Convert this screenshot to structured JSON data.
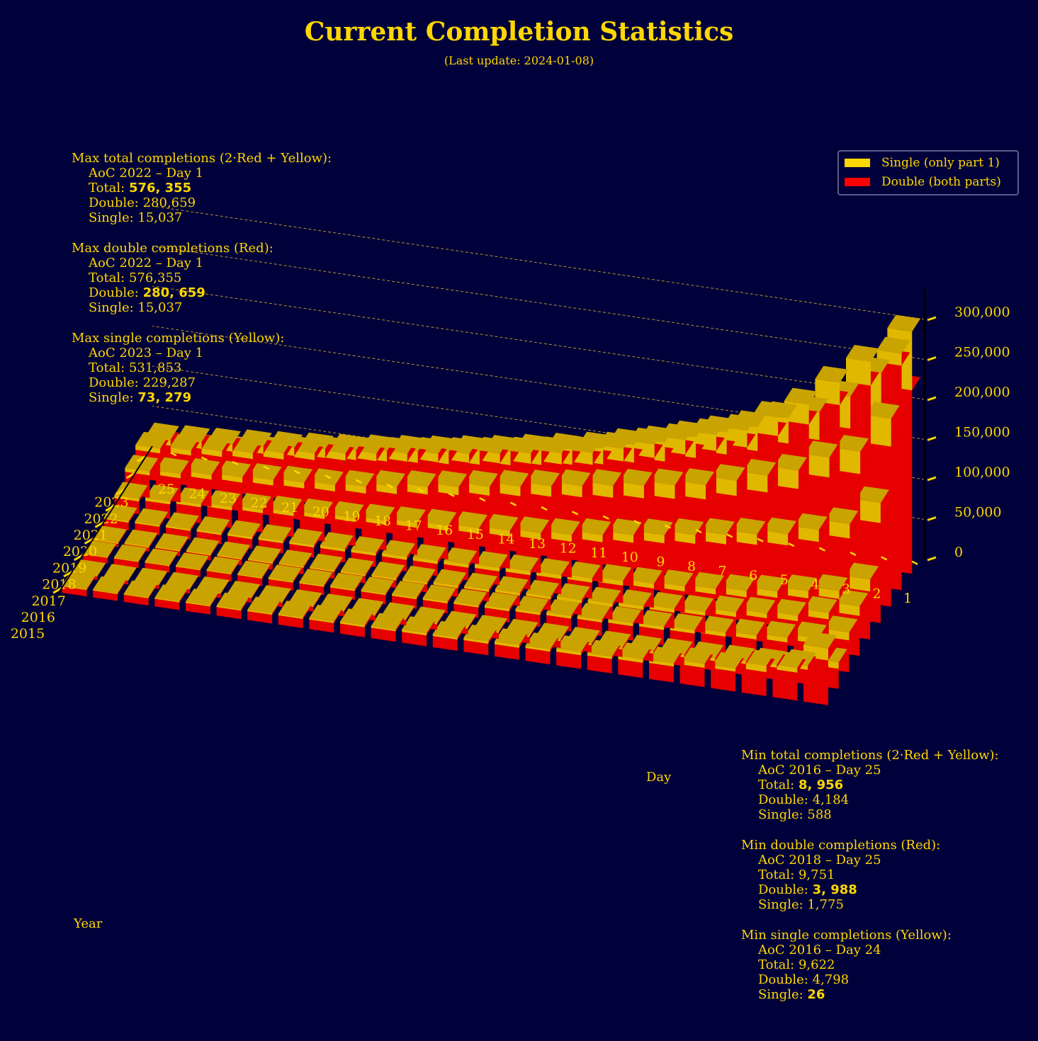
{
  "title": "Current Completion Statistics",
  "subtitle": "(Last update: 2024-01-08)",
  "legend": [
    {
      "label": "Single (only part 1)",
      "color": "#ffd700"
    },
    {
      "label": "Double (both parts)",
      "color": "#ff0000"
    }
  ],
  "stats_max": [
    {
      "heading": "Max total completions (2·Red + Yellow):",
      "event": "AoC 2022 – Day 1",
      "total_label": "Total: ",
      "total": "576, 355",
      "double_label": "Double: ",
      "double": "280,659",
      "single_label": "Single: ",
      "single": "15,037",
      "bold": "total"
    },
    {
      "heading": "Max double completions (Red):",
      "event": "AoC 2022 – Day 1",
      "total_label": "Total: ",
      "total": "576,355",
      "double_label": "Double: ",
      "double": "280, 659",
      "single_label": "Single: ",
      "single": "15,037",
      "bold": "double"
    },
    {
      "heading": "Max single completions (Yellow):",
      "event": "AoC 2023 – Day 1",
      "total_label": "Total: ",
      "total": "531,853",
      "double_label": "Double: ",
      "double": "229,287",
      "single_label": "Single: ",
      "single": "73, 279",
      "bold": "single"
    }
  ],
  "stats_min": [
    {
      "heading": "Min total completions (2·Red + Yellow):",
      "event": "AoC 2016 – Day 25",
      "total_label": "Total: ",
      "total": "8, 956",
      "double_label": "Double: ",
      "double": "4,184",
      "single_label": "Single: ",
      "single": "588",
      "bold": "total"
    },
    {
      "heading": "Min double completions (Red):",
      "event": "AoC 2018 – Day 25",
      "total_label": "Total: ",
      "total": "9,751",
      "double_label": "Double: ",
      "double": "3, 988",
      "single_label": "Single: ",
      "single": "1,775",
      "bold": "double"
    },
    {
      "heading": "Min single completions (Yellow):",
      "event": "AoC 2016 – Day 24",
      "total_label": "Total: ",
      "total": "9,622",
      "double_label": "Double: ",
      "double": "4,798",
      "single_label": "Single: ",
      "single": "26",
      "bold": "single"
    }
  ],
  "chart_data": {
    "type": "bar",
    "projection": "3d",
    "stacked": true,
    "xlabel": "Year",
    "ylabel": "Day",
    "zlabel": "",
    "years": [
      "2015",
      "2016",
      "2017",
      "2018",
      "2019",
      "2020",
      "2021",
      "2022",
      "2023"
    ],
    "days": [
      "1",
      "2",
      "3",
      "4",
      "5",
      "6",
      "7",
      "8",
      "9",
      "10",
      "11",
      "12",
      "13",
      "14",
      "15",
      "16",
      "17",
      "18",
      "19",
      "20",
      "21",
      "22",
      "23",
      "24",
      "25"
    ],
    "zticks": [
      "0",
      "50,000",
      "100,000",
      "150,000",
      "200,000",
      "250,000",
      "300,000"
    ],
    "zlim": [
      0,
      300000
    ],
    "grid": true,
    "legend_position": "top-right",
    "series": [
      {
        "name": "Double (both parts)",
        "color": "#ff0000",
        "values": [
          [
            56000,
            35000,
            30000,
            25000,
            24000,
            20000,
            19000,
            18000,
            17000,
            16000,
            15000,
            14500,
            14000,
            13500,
            13000,
            12500,
            12000,
            11500,
            11000,
            10500,
            10000,
            9500,
            9000,
            8500,
            8000
          ],
          [
            25000,
            18000,
            15000,
            14000,
            12000,
            11000,
            10000,
            9500,
            9000,
            8500,
            8000,
            7500,
            7000,
            6800,
            6600,
            6400,
            6200,
            6000,
            5800,
            5600,
            5400,
            5200,
            5000,
            4798,
            4184
          ],
          [
            40000,
            30000,
            26000,
            24000,
            22000,
            20000,
            19000,
            18000,
            17000,
            16000,
            15000,
            14000,
            13000,
            12500,
            12000,
            11500,
            11000,
            10500,
            10000,
            9500,
            9000,
            8500,
            8000,
            7500,
            7000
          ],
          [
            50000,
            40000,
            32000,
            30000,
            26000,
            22000,
            20000,
            18000,
            16000,
            15000,
            14000,
            13000,
            12000,
            11000,
            10000,
            9500,
            9000,
            8500,
            8000,
            7500,
            7000,
            6500,
            6000,
            5000,
            3988
          ],
          [
            60000,
            45000,
            40000,
            35000,
            30000,
            28000,
            26000,
            24000,
            22000,
            20000,
            19000,
            18000,
            17000,
            16000,
            15000,
            14500,
            14000,
            13500,
            13000,
            12500,
            12000,
            11500,
            11000,
            10500,
            10000
          ],
          [
            125000,
            100000,
            90000,
            80000,
            75000,
            70000,
            65000,
            60000,
            55000,
            50000,
            45000,
            42000,
            40000,
            38000,
            36000,
            34000,
            32000,
            30000,
            28000,
            26000,
            24000,
            22000,
            20000,
            18000,
            16000
          ],
          [
            200000,
            160000,
            150000,
            130000,
            120000,
            110000,
            100000,
            95000,
            90000,
            85000,
            80000,
            75000,
            70000,
            65000,
            60000,
            55000,
            50000,
            45000,
            42000,
            40000,
            38000,
            36000,
            34000,
            30000,
            28000
          ],
          [
            280659,
            250000,
            220000,
            190000,
            170000,
            150000,
            140000,
            130000,
            120000,
            110000,
            100000,
            95000,
            90000,
            85000,
            80000,
            75000,
            70000,
            65000,
            60000,
            55000,
            50000,
            45000,
            42000,
            38000,
            35000
          ],
          [
            229287,
            200000,
            170000,
            150000,
            140000,
            125000,
            115000,
            105000,
            95000,
            88000,
            80000,
            74000,
            68000,
            62000,
            57000,
            52000,
            48000,
            44000,
            40000,
            37000,
            34000,
            31000,
            28000,
            26000,
            24000
          ]
        ]
      },
      {
        "name": "Single (only part 1)",
        "color": "#ffd700",
        "values": [
          [
            15000,
            6000,
            8000,
            4000,
            5000,
            4000,
            4500,
            3000,
            4000,
            3000,
            3500,
            3000,
            2500,
            3000,
            2000,
            2500,
            2000,
            2000,
            1800,
            1800,
            1600,
            1500,
            1400,
            1300,
            1200
          ],
          [
            8000,
            5000,
            4000,
            3000,
            3500,
            3000,
            2500,
            2500,
            2000,
            2000,
            1800,
            1600,
            1500,
            1400,
            1300,
            1200,
            1100,
            1000,
            900,
            850,
            800,
            750,
            700,
            26,
            588
          ],
          [
            10000,
            7000,
            6000,
            5000,
            5000,
            4500,
            4000,
            4000,
            3500,
            3500,
            3000,
            3000,
            2500,
            2500,
            2200,
            2000,
            2000,
            1800,
            1800,
            1600,
            1500,
            1400,
            1300,
            1200,
            1100
          ],
          [
            12000,
            8000,
            7000,
            6000,
            6000,
            5000,
            5000,
            4500,
            4000,
            4000,
            3500,
            3500,
            3000,
            3000,
            2500,
            2500,
            2200,
            2000,
            1900,
            1800,
            1800,
            1775,
            1775,
            1775,
            1775
          ],
          [
            15000,
            10000,
            9000,
            8000,
            8000,
            7000,
            6500,
            6000,
            6000,
            5500,
            5000,
            5000,
            4500,
            4500,
            4000,
            4000,
            3500,
            3500,
            3000,
            3000,
            2800,
            2600,
            2400,
            2200,
            2000
          ],
          [
            25000,
            18000,
            15000,
            14000,
            13000,
            12000,
            11000,
            10000,
            9500,
            9000,
            8500,
            8000,
            7500,
            7000,
            6500,
            6000,
            5500,
            5000,
            4800,
            4600,
            4400,
            4200,
            4000,
            3800,
            3600
          ],
          [
            35000,
            28000,
            25000,
            23000,
            21000,
            19000,
            18000,
            17000,
            16000,
            15000,
            14000,
            13000,
            12000,
            11000,
            10000,
            9500,
            9000,
            8500,
            8000,
            7500,
            7000,
            6500,
            6000,
            5500,
            5000
          ],
          [
            15037,
            30000,
            28000,
            25000,
            23000,
            21000,
            20000,
            18000,
            17000,
            16000,
            15000,
            14000,
            13000,
            12000,
            11000,
            10500,
            10000,
            9500,
            9000,
            8500,
            8000,
            7500,
            7000,
            6500,
            6000
          ],
          [
            73279,
            45000,
            40000,
            35000,
            32000,
            30000,
            28000,
            26000,
            24000,
            22000,
            20000,
            19000,
            18000,
            17000,
            16000,
            15000,
            14000,
            13000,
            12000,
            11000,
            10000,
            9500,
            9000,
            8500,
            8000
          ]
        ]
      }
    ]
  }
}
